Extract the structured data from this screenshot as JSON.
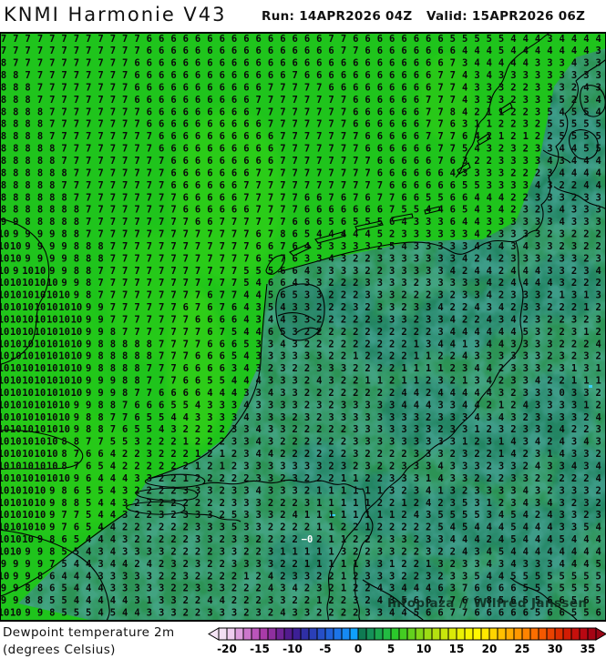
{
  "header": {
    "title": "KNMI Harmonie V43",
    "run_label": "Run: 14APR2026 04Z",
    "valid_label": "Valid: 15APR2026 06Z"
  },
  "map": {
    "watermark": "Infoplaza // Wilfred Janssen",
    "colors": {
      "sea_green": "#1fc41c",
      "sea_bright": "#35d513",
      "land_green": "#2c9355",
      "land_teal": "#1f7a70",
      "coastline": "#000000",
      "digit": "#0a0a0a",
      "minimum_label": "#ffffff"
    },
    "minimum_label": {
      "text": "−0",
      "row": 41,
      "col": 25
    },
    "grid": {
      "cols": 50,
      "rows": [
        "7 7 7 7 7 7 7 7 7 7 7 7 6 6 6 6 6 6 6 6 6 6 6 6 6 6 6 7 7 6 6 6 6 6 6 6 6 5 5 5 5 5 4 4 4 3 4 4 4 4",
        "7 7 7 7 7 7 7 7 7 7 7 7 6 6 6 6 6 6 6 6 6 6 6 6 6 6 6 6 7 7 6 6 6 6 6 6 6 6 4 4 4 5 4 4 4 4 4 4 4 3",
        "8 7 7 7 7 7 7 7 7 7 7 6 6 6 6 6 6 6 6 6 6 6 6 6 6 6 6 6 6 6 6 6 6 6 6 6 6 7 3 4 4 4 4 4 3 3 3 4 3 3",
        "8 8 7 7 7 7 7 7 7 7 7 6 6 6 6 6 6 6 6 6 6 6 6 6 7 6 6 6 6 6 6 6 6 6 6 6 7 7 4 3 4 3 3 3 3 3 3 3 3 3",
        "8 8 8 7 7 7 7 7 7 7 7 6 6 6 6 6 6 6 6 6 6 6 7 7 7 7 7 6 6 6 6 6 6 6 6 6 7 7 4 3 3 3 2 2 3 3 3 2 4 3",
        "8 8 8 7 7 7 7 7 7 7 7 6 6 6 6 6 6 6 6 6 6 7 7 7 7 7 7 7 7 6 6 6 6 6 6 7 7 7 4 3 3 3 2 3 3 3 5 2 3 4",
        "8 8 8 8 7 7 7 7 7 7 7 7 6 6 6 6 6 6 6 6 6 7 7 7 7 7 7 7 7 6 6 6 6 6 6 7 7 8 4 2 1 1 2 2 3 5 4 5 5 4",
        "8 8 8 8 7 7 7 7 7 7 7 7 6 6 6 6 6 6 6 6 6 6 7 7 7 7 7 7 7 6 6 6 6 6 6 7 7 6 3 1 1 2 2 3 2 5 5 5 5 5",
        "8 8 8 8 7 7 7 7 7 7 7 7 7 6 6 6 6 6 6 6 6 6 6 7 7 7 7 7 7 7 6 6 6 6 6 7 7 7 6 4 2 1 2 1 2 2 5 5 5 5",
        "8 8 8 8 8 7 7 7 7 7 7 7 7 6 6 6 6 6 6 6 6 6 6 7 7 7 7 7 7 7 6 6 6 6 6 6 7 7 5 4 3 2 3 2 3 3 4 4 5 5",
        "8 8 8 8 8 7 7 7 7 7 7 7 7 7 6 6 6 6 6 6 6 6 6 7 7 7 7 7 7 7 7 6 6 6 6 6 7 6 3 2 2 3 3 3 3 4 3 4 4 4",
        "8 8 8 8 8 8 7 7 7 7 7 7 7 7 6 6 6 6 6 6 6 7 7 7 7 7 7 7 7 7 7 6 6 6 6 6 6 4 3 3 3 3 2 2 2 3 4 4 4 4",
        "8 8 8 8 8 7 7 7 7 7 7 7 7 7 6 6 6 6 6 6 7 7 7 7 7 7 7 7 7 7 7 7 6 6 6 6 6 6 5 5 3 3 3 3 4 3 2 2 4 4",
        "8 8 8 8 8 8 7 7 7 7 7 7 7 7 7 6 6 6 6 6 7 7 7 7 7 6 6 7 6 7 6 7 7 6 6 5 5 6 6 4 4 4 2 2 3 3 3 2 3 3",
        "8 8 8 8 8 8 8 7 7 7 7 7 7 7 7 6 6 6 6 6 6 7 7 7 7 6 6 6 6 6 6 6 7 5 5 4 4 6 5 4 3 4 2 3 2 3 4 3 3 3",
        "9 9 8 8 8 8 8 7 7 7 7 7 7 7 7 7 6 6 7 7 7 7 7 7 6 6 6 5 6 5 5 5 6 4 3 3 3 6 4 4 3 3 3 3 3 3 4 3 3 3",
        "10 9 9 9 9 8 8 7 7 7 7 7 7 7 7 7 7 7 7 7 7 6 7 8 6 5 4 4 4 4 4 5 2 3 3 3 3 3 3 4 2 3 3 3 3 2 3 2 2 2",
        "10 10 9 9 9 9 8 8 8 7 7 7 7 7 7 7 7 7 7 7 7 6 6 7 6 4 3 3 3 3 3 2 5 4 3 3 3 3 3 4 3 4 3 4 3 3 2 3 2 2",
        "10 10 9 9 9 9 8 8 8 7 7 7 7 7 7 7 7 7 7 7 7 6 5 7 6 3 3 4 3 2 2 3 3 3 3 3 3 3 4 2 4 2 3 3 3 2 3 3 2 3",
        "10 9 10 10 9 9 8 8 7 7 7 7 7 7 7 7 7 7 7 7 5 5 5 6 6 4 3 3 3 3 2 2 3 3 3 3 3 4 2 4 4 2 4 4 4 3 3 2 3 4",
        "10 10 10 10 10 9 9 8 7 7 7 7 7 7 7 7 7 7 7 7 5 4 6 6 4 3 3 2 2 2 3 3 3 3 2 3 3 3 3 3 4 2 4 4 4 4 3 2 2 2",
        "10 10 10 10 10 10 9 8 7 7 7 7 7 7 7 7 7 6 7 7 4 4 5 6 5 3 3 2 2 2 3 3 3 2 2 2 3 2 3 3 4 2 3 3 3 2 1 3 1 3",
        "10 10 10 10 10 10 10 9 9 7 7 7 7 7 7 6 7 6 7 6 4 3 5 4 3 3 2 2 2 3 2 3 3 2 3 3 4 2 2 4 3 4 2 3 3 2 2 2 1 2",
        "10 10 10 10 10 10 10 9 9 7 7 7 7 7 7 7 6 6 6 6 4 3 4 4 3 3 2 2 2 2 2 3 3 3 2 3 3 4 2 2 4 3 4 2 3 2 2 3 2 3",
        "10 10 10 10 10 10 10 9 9 8 7 7 7 7 7 7 7 6 7 5 4 4 6 5 3 2 2 2 2 2 2 2 2 2 2 2 3 4 4 4 4 4 4 5 3 2 2 3 1 2",
        "10 10 10 10 10 10 10 9 8 8 8 8 8 7 7 7 7 6 6 6 5 3 3 4 3 2 2 2 2 2 2 2 2 2 1 3 4 4 1 3 4 4 3 3 3 3 2 2 2 4",
        "10 10 10 10 10 10 10 9 8 8 8 8 8 7 7 7 6 6 6 5 4 3 3 3 3 3 3 2 2 1 2 2 2 2 1 1 2 2 4 3 3 3 3 3 3 2 3 2 3 2",
        "10 10 10 10 10 10 10 9 8 8 8 8 7 7 7 6 6 6 6 3 4 3 2 3 2 2 3 3 3 2 2 2 2 1 1 1 1 2 3 4 4 2 3 3 3 2 3 1 3 1",
        "10 10 10 10 10 10 10 9 9 9 8 8 7 7 7 6 6 5 5 4 4 4 3 3 3 2 4 3 2 2 1 1 2 1 1 2 3 2 1 3 4 2 3 3 4 2 2 1 1 1",
        "10 10 10 10 10 10 10 9 9 9 8 7 7 6 6 6 6 4 4 4 3 3 4 3 3 2 2 2 2 2 2 2 2 4 4 2 4 4 4 4 4 3 2 3 3 3 0 3 3 2",
        "10 10 10 10 10 10 9 9 8 8 7 6 6 6 5 5 4 3 3 3 4 3 3 3 3 2 3 2 3 3 3 3 3 4 4 4 3 3 4 4 2 1 2 4 3 3 3 3 1 2",
        "10 10 10 10 10 10 9 8 8 7 7 6 5 5 4 4 3 3 3 3 4 3 3 3 2 3 2 3 3 3 3 3 3 3 3 2 3 3 3 4 3 4 3 2 3 3 3 3 2 4",
        "10 10 10 10 10 10 9 8 8 7 6 5 5 4 3 2 2 2 2 3 3 4 3 3 2 2 2 2 2 3 3 3 3 3 3 3 2 3 3 1 2 3 2 3 3 2 4 2 2 3",
        "10 10 10 10 10 8 8 7 7 5 5 3 2 2 2 1 2 2 2 3 3 4 3 2 2 2 2 2 2 3 3 3 3 3 3 3 3 3 1 2 3 1 4 3 4 2 4 3 4 3",
        "10 10 10 10 10 8 7 6 6 4 2 2 3 2 2 2 1 2 1 2 3 4 4 2 2 2 2 2 2 3 2 2 2 2 3 3 3 2 3 2 2 1 4 2 3 1 4 3 3 2",
        "10 10 10 10 10 8 7 6 5 4 2 2 2 2 2 2 1 2 1 2 3 3 3 3 3 3 3 2 3 2 3 2 2 3 3 3 4 3 3 3 2 3 3 2 4 3 3 4 3 4",
        "10 10 10 10 10 10 9 6 4 4 4 3 3 2 2 1 2 2 2 2 2 3 3 2 3 2 2 2 1 1 2 2 3 3 3 1 4 3 3 2 2 2 3 3 2 2 2 2 2 4",
        "10 10 10 10 9 8 6 5 5 4 3 2 2 2 2 3 3 3 2 3 3 4 3 3 3 2 1 1 1 1 1 1 3 2 3 4 1 3 2 3 3 3 3 4 3 2 3 3 3 2",
        "10 10 10 10 9 8 8 5 4 4 3 2 2 2 2 2 2 2 2 3 3 3 2 2 2 3 1 1 1 1 1 2 2 1 2 4 2 3 5 3 1 2 3 4 3 4 3 2 3 2",
        "10 10 10 10 9 7 7 5 4 4 3 2 2 3 2 3 3 3 2 5 3 3 3 2 4 1 1 1 1 1 1 1 1 2 4 3 5 5 5 5 3 4 5 4 2 4 3 3 2 3",
        "10 10 10 10 9 7 6 5 4 4 2 2 2 2 2 2 3 3 3 5 3 3 2 2 2 2 1 1 2 2 1 2 2 2 2 2 5 4 5 4 4 4 5 4 4 4 3 3 5 4",
        "10 10 10 9 8 6 5 4 4 4 3 2 2 2 2 2 3 3 2 3 3 2 2 2 2 -0 2 1 1 2 2 2 3 3 2 3 3 4 4 4 2 4 5 4 4 4 5 4 4 4",
        "10 10 9 9 8 5 5 4 3 4 3 3 3 3 2 2 2 2 3 3 2 2 3 1 1 1 1 1 3 2 2 3 3 2 2 3 2 2 4 3 4 5 4 4 4 4 4 4 4 4",
        "9 9 9 9 7 5 4 4 3 4 4 2 4 2 3 2 3 2 2 3 3 3 3 2 2 1 1 1 1 1 3 3 1 2 2 1 3 2 3 3 4 3 4 3 3 3 4 4 4 5",
        "10 9 9 8 6 4 4 4 3 3 3 3 3 2 2 3 2 2 2 2 1 2 4 2 3 3 2 2 1 2 3 3 3 2 2 3 2 3 3 5 4 4 5 5 5 5 5 5 5 5",
        "9 9 8 8 6 5 4 4 4 3 3 3 3 3 2 2 3 3 3 2 2 2 4 3 4 2 3 2 1 2 2 4 3 4 4 4 6 3 7 6 6 6 6 5 5 5 5 5 5 5",
        "9 9 8 8 5 5 4 4 4 4 4 3 1 3 3 2 2 4 4 2 2 2 3 3 2 2 1 2 2 3 2 4 3 5 6 6 7 7 6 6 8 5 6 5 5 6 6 5 6 5",
        "10 10 9 9 8 5 5 5 4 5 4 4 3 3 3 2 2 3 3 3 2 3 2 4 3 3 2 2 2 2 3 3 4 4 5 6 6 7 7 6 6 6 6 6 5 6 6 5 5 6"
      ]
    }
  },
  "legend": {
    "title_line1": "Dewpoint temperature 2m",
    "title_line2": "(degrees Celsius)",
    "colorbar": {
      "ticks": [
        "-20",
        "-15",
        "-10",
        "-5",
        "0",
        "5",
        "10",
        "15",
        "20",
        "25",
        "30",
        "35"
      ],
      "colors": [
        "#f2dff2",
        "#eeccee",
        "#dd9fdd",
        "#cc77cc",
        "#bb55bb",
        "#a93ba9",
        "#8f2f9f",
        "#6f2496",
        "#521b8e",
        "#3c1f96",
        "#2f2fa6",
        "#2a3fb8",
        "#264fc8",
        "#2161d8",
        "#1c74e8",
        "#168af4",
        "#0fa0fa",
        "#0f7a52",
        "#159158",
        "#1ba84e",
        "#22bc42",
        "#2bc82b",
        "#44cc22",
        "#63d01d",
        "#82d618",
        "#9ddc14",
        "#b4e010",
        "#c9e60c",
        "#daea08",
        "#eaf004",
        "#f6f400",
        "#fff800",
        "#ffe800",
        "#ffd400",
        "#ffc000",
        "#ffac00",
        "#ff9800",
        "#ff8400",
        "#fc6e00",
        "#f55800",
        "#ea4200",
        "#de2e00",
        "#d21c04",
        "#c6100c",
        "#b80812",
        "#a60414"
      ]
    }
  }
}
